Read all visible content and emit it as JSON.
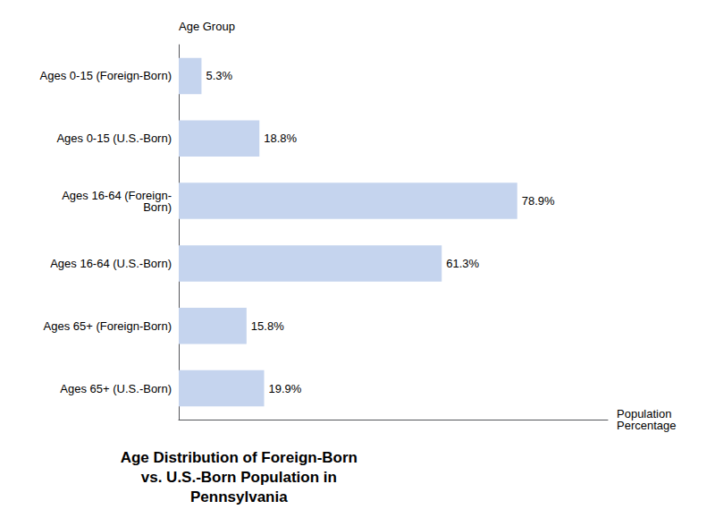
{
  "chart_data": {
    "type": "bar",
    "orientation": "horizontal",
    "title": "Age Distribution of Foreign-Born\nvs. U.S.-Born Population in\nPennsylvania",
    "categories": [
      "Ages 0-15 (Foreign-Born)",
      "Ages 0-15 (U.S.-Born)",
      "Ages 16-64 (Foreign-\nBorn)",
      "Ages 16-64 (U.S.-Born)",
      "Ages 65+ (Foreign-Born)",
      "Ages 65+ (U.S.-Born)"
    ],
    "values": [
      5.3,
      18.8,
      78.9,
      61.3,
      15.8,
      19.9
    ],
    "value_labels": [
      "5.3%",
      "18.8%",
      "78.9%",
      "61.3%",
      "15.8%",
      "19.9%"
    ],
    "data_labels": true,
    "color": "#c5d4ee",
    "xlabel": "Population\nPercentage",
    "ylabel": "Age Group",
    "xlim": [
      0,
      100
    ],
    "xticks": [],
    "tick_labels": "y",
    "grid": false
  }
}
